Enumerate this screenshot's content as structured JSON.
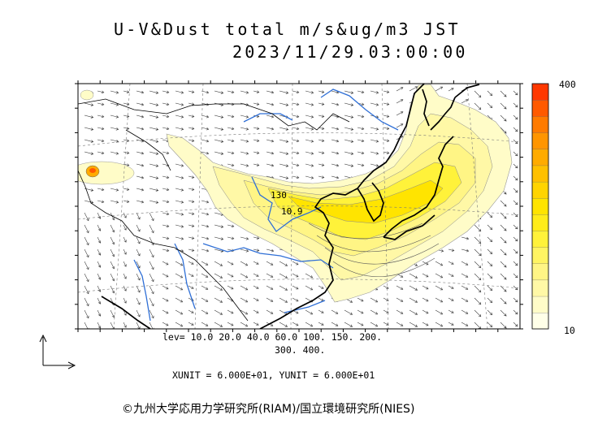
{
  "title": {
    "line1": "U-V&Dust total m/s&ug/m3 JST",
    "line2": "2023/11/29.03:00:00"
  },
  "contour_levels": {
    "line1": "lev= 10.0 20.0 40.0 60.0 100. 150. 200.",
    "line2": "300. 400."
  },
  "units_text": "XUNIT = 6.000E+01, YUNIT = 6.000E+01",
  "credit": "©九州大学応用力学研究所(RIAM)/国立環境研究所(NIES)",
  "colorbar": {
    "max_label": "400",
    "min_label": "10",
    "colors": [
      "#ffffe8",
      "#fffcc8",
      "#fff8a6",
      "#fff585",
      "#fff462",
      "#fff23a",
      "#ffec1a",
      "#ffe400",
      "#ffd400",
      "#ffc000",
      "#ffab00",
      "#ff9500",
      "#ff7b00",
      "#ff5a00",
      "#ff3800"
    ]
  },
  "map_labels": [
    "130",
    "10.9"
  ],
  "colors": {
    "coast": "#000000",
    "rivers": "#2f6fd6",
    "wind_vectors": "#333333"
  }
}
